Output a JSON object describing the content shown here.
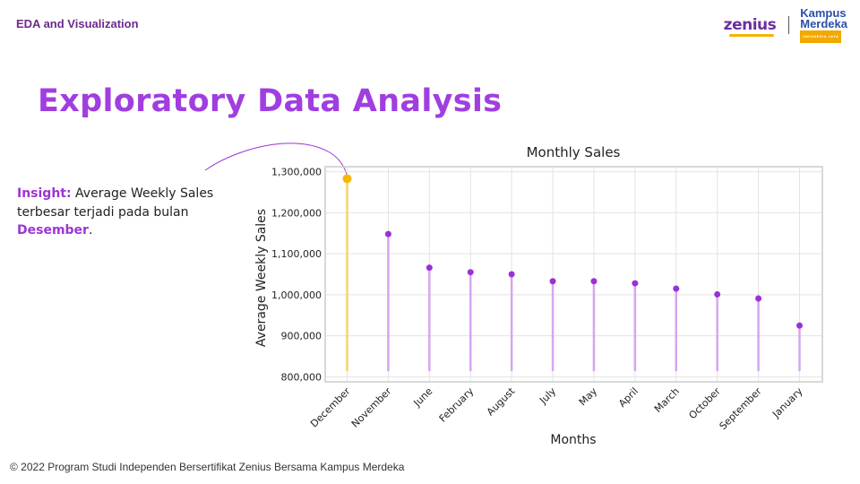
{
  "header": {
    "section_label": "EDA and Visualization",
    "logo_zenius": "zenius",
    "logo_km_line1": "Kampus",
    "logo_km_line2": "Merdeka",
    "logo_km_sub": "INDONESIA JAYA"
  },
  "page_title": "Exploratory Data Analysis",
  "insight": {
    "label": "Insight:",
    "text_before": " Average Weekly Sales terbesar terjadi pada bulan ",
    "highlight": "Desember",
    "text_after": "."
  },
  "footer": "© 2022 Program Studi Independen Bersertifikat Zenius Bersama Kampus Merdeka",
  "colors": {
    "accent": "#a03ee0",
    "dot": "#9b30d9",
    "stem": "#d6a6ee",
    "highlight_dot": "#f5b800",
    "highlight_stem": "#f3d56a"
  },
  "chart_data": {
    "type": "lollipop",
    "title": "Monthly Sales",
    "xlabel": "Months",
    "ylabel": "Average Weekly Sales",
    "categories": [
      "December",
      "November",
      "June",
      "February",
      "August",
      "July",
      "May",
      "April",
      "March",
      "October",
      "September",
      "January"
    ],
    "values": [
      1283000,
      1148000,
      1066000,
      1055000,
      1050000,
      1033000,
      1033000,
      1028000,
      1015000,
      1001000,
      991000,
      925000
    ],
    "highlight_index": 0,
    "ylim": [
      790000,
      1310000
    ],
    "yticks": [
      800000,
      900000,
      1000000,
      1100000,
      1200000,
      1300000
    ],
    "ytick_labels": [
      "800,000",
      "900,000",
      "1,000,000",
      "1,100,000",
      "1,200,000",
      "1,300,000"
    ],
    "grid": true,
    "legend": "none"
  }
}
